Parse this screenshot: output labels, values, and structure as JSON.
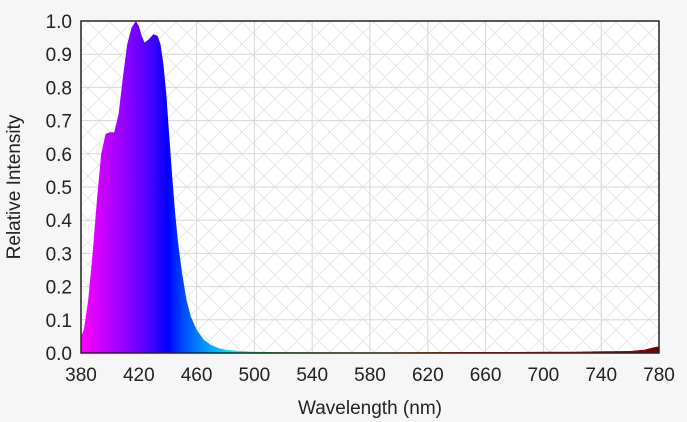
{
  "chart_data": {
    "type": "area",
    "title": "",
    "xlabel": "Wavelength (nm)",
    "ylabel": "Relative Intensity",
    "xlim": [
      380,
      780
    ],
    "ylim": [
      0,
      1.0
    ],
    "x_ticks": [
      380,
      420,
      460,
      500,
      540,
      580,
      620,
      660,
      700,
      740,
      780
    ],
    "x_tick_labels": [
      "380",
      "420",
      "460",
      "500",
      "540",
      "580",
      "620",
      "660",
      "700",
      "740",
      "780"
    ],
    "y_ticks": [
      0,
      0.1,
      0.2,
      0.3,
      0.4,
      0.5,
      0.6,
      0.7,
      0.8,
      0.9,
      1.0
    ],
    "y_tick_labels": [
      "0.0",
      "0.1",
      "0.2",
      "0.3",
      "0.4",
      "0.5",
      "0.6",
      "0.7",
      "0.8",
      "0.9",
      "1.0"
    ],
    "grid": true,
    "fill": "spectral colors by wavelength",
    "series": [
      {
        "x": [
          380,
          382,
          385,
          388,
          391,
          394,
          397,
          400,
          403,
          406,
          409,
          412,
          415,
          418,
          420,
          422,
          424,
          427,
          430,
          433,
          435,
          437,
          439,
          441,
          443,
          445,
          447,
          450,
          453,
          456,
          460,
          465,
          470,
          475,
          480,
          490,
          500,
          510,
          520,
          540,
          560,
          580,
          600,
          620,
          640,
          660,
          680,
          700,
          720,
          740,
          760,
          770,
          775,
          780
        ],
        "values": [
          0.05,
          0.07,
          0.16,
          0.3,
          0.46,
          0.6,
          0.66,
          0.665,
          0.665,
          0.72,
          0.83,
          0.93,
          0.98,
          1.0,
          0.985,
          0.955,
          0.935,
          0.945,
          0.96,
          0.955,
          0.93,
          0.87,
          0.78,
          0.66,
          0.54,
          0.43,
          0.34,
          0.24,
          0.16,
          0.11,
          0.07,
          0.04,
          0.024,
          0.015,
          0.01,
          0.006,
          0.004,
          0.003,
          0.002,
          0.002,
          0.002,
          0.002,
          0.002,
          0.003,
          0.003,
          0.003,
          0.003,
          0.004,
          0.004,
          0.005,
          0.006,
          0.01,
          0.016,
          0.02
        ]
      }
    ]
  }
}
